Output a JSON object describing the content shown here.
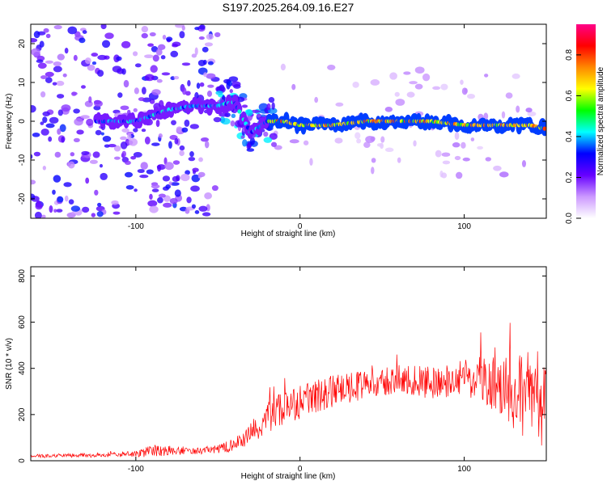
{
  "title": "S197.2025.264.09.16.E27",
  "chart_data": [
    {
      "type": "heatmap",
      "xlabel": "Height of straight line (km)",
      "ylabel": "Frequency (Hz)",
      "xlim": [
        -164,
        150
      ],
      "ylim": [
        -25,
        25
      ],
      "xticks": [
        -100,
        0,
        100
      ],
      "yticks": [
        -20,
        -10,
        0,
        10,
        20
      ],
      "colorbar": {
        "label": "Normalized spectral amplitude",
        "range": [
          0,
          0.95
        ],
        "ticks": [
          "0.0",
          "0.2",
          "0.4",
          "0.6",
          "0.8"
        ],
        "colors": [
          "#ffffff",
          "#cc99ff",
          "#6600ff",
          "#0000ff",
          "#00ffff",
          "#00ff00",
          "#ffff00",
          "#ff8800",
          "#ff0000",
          "#ff0088"
        ]
      },
      "ridge": {
        "x": [
          -120,
          -100,
          -80,
          -65,
          -50,
          -40,
          -30,
          -20,
          -10,
          0,
          20,
          40,
          60,
          80,
          100,
          120,
          140,
          150
        ],
        "freq_hz": [
          0,
          0,
          3,
          4,
          4,
          5,
          -3,
          0,
          0,
          -1,
          -1,
          0,
          0,
          0,
          -1,
          -1,
          -1,
          -2
        ]
      }
    },
    {
      "type": "line",
      "xlabel": "Height of straight line (km)",
      "ylabel": "SNR (10 * v/v)",
      "xlim": [
        -164,
        150
      ],
      "ylim": [
        0,
        840
      ],
      "xticks": [
        -100,
        0,
        100
      ],
      "yticks": [
        0,
        200,
        400,
        600,
        800
      ],
      "color": "#ff0000",
      "series_envelope": {
        "x": [
          -164,
          -120,
          -100,
          -90,
          -80,
          -70,
          -50,
          -40,
          -30,
          -20,
          -10,
          0,
          10,
          20,
          40,
          60,
          80,
          100,
          110,
          120,
          130,
          140,
          150
        ],
        "mean": [
          20,
          25,
          30,
          40,
          45,
          40,
          50,
          70,
          120,
          180,
          220,
          250,
          280,
          300,
          330,
          350,
          340,
          360,
          350,
          340,
          300,
          280,
          260
        ],
        "spread": [
          15,
          20,
          25,
          60,
          40,
          30,
          35,
          60,
          100,
          150,
          180,
          150,
          140,
          140,
          120,
          130,
          140,
          160,
          200,
          260,
          330,
          420,
          400
        ]
      }
    }
  ]
}
